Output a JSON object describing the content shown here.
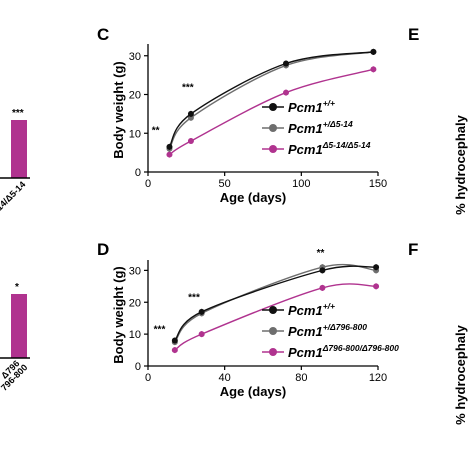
{
  "panel_letters": {
    "c": "C",
    "d": "D",
    "e": "E",
    "f": "F"
  },
  "left_cutoff": {
    "top_sig": "***",
    "top_tick": "-14/Δ5-14",
    "bottom_sig": "*",
    "bottom_tick_1": "Δ796",
    "bottom_tick_2": "796-800",
    "bar_color": "#b0338f"
  },
  "right_cutoff": {
    "top_label": "% hydrocephaly",
    "bottom_label": "% hydrocephaly"
  },
  "colors": {
    "wt": "#111111",
    "het": "#6e6e6e",
    "hom": "#b0338f"
  },
  "chart_data": [
    {
      "panel": "C",
      "type": "line",
      "xlabel": "Age (days)",
      "ylabel": "Body weight (g)",
      "xlim": [
        0,
        150
      ],
      "ylim": [
        0,
        32
      ],
      "xticks": [
        0,
        50,
        100,
        150
      ],
      "yticks": [
        0,
        10,
        20,
        30
      ],
      "series": [
        {
          "name": "Pcm1",
          "sup": "+/+",
          "color": "#111111",
          "x": [
            14,
            28,
            90,
            147
          ],
          "y": [
            6.5,
            15,
            28,
            31
          ]
        },
        {
          "name": "Pcm1",
          "sup": "+/Δ5-14",
          "color": "#6e6e6e",
          "x": [
            14,
            28,
            90,
            147
          ],
          "y": [
            6,
            14,
            27.5,
            31
          ]
        },
        {
          "name": "Pcm1",
          "sup": "Δ5-14/Δ5-14",
          "color": "#b0338f",
          "x": [
            14,
            28,
            90,
            147
          ],
          "y": [
            4.5,
            8,
            20.5,
            26.5
          ]
        }
      ],
      "annotations": [
        {
          "text": "**",
          "x": 5,
          "y": 10
        },
        {
          "text": "***",
          "x": 26,
          "y": 21
        }
      ]
    },
    {
      "panel": "D",
      "type": "line",
      "xlabel": "Age (days)",
      "ylabel": "Body weight (g)",
      "xlim": [
        0,
        120
      ],
      "ylim": [
        0,
        32
      ],
      "xticks": [
        0,
        40,
        80,
        120
      ],
      "yticks": [
        0,
        10,
        20,
        30
      ],
      "series": [
        {
          "name": "Pcm1",
          "sup": "+/+",
          "color": "#111111",
          "x": [
            14,
            28,
            91,
            119
          ],
          "y": [
            8,
            17,
            30,
            31
          ]
        },
        {
          "name": "Pcm1",
          "sup": "+/Δ796-800",
          "color": "#6e6e6e",
          "x": [
            14,
            28,
            91,
            119
          ],
          "y": [
            7.5,
            16.5,
            31,
            30
          ]
        },
        {
          "name": "Pcm1",
          "sup": "Δ796-800/Δ796-800",
          "color": "#b0338f",
          "x": [
            14,
            28,
            91,
            119
          ],
          "y": [
            5,
            10,
            24.5,
            25
          ]
        }
      ],
      "annotations": [
        {
          "text": "***",
          "x": 6,
          "y": 10.5
        },
        {
          "text": "***",
          "x": 24,
          "y": 20.5
        },
        {
          "text": "**",
          "x": 90,
          "y": 34.5
        }
      ]
    }
  ]
}
